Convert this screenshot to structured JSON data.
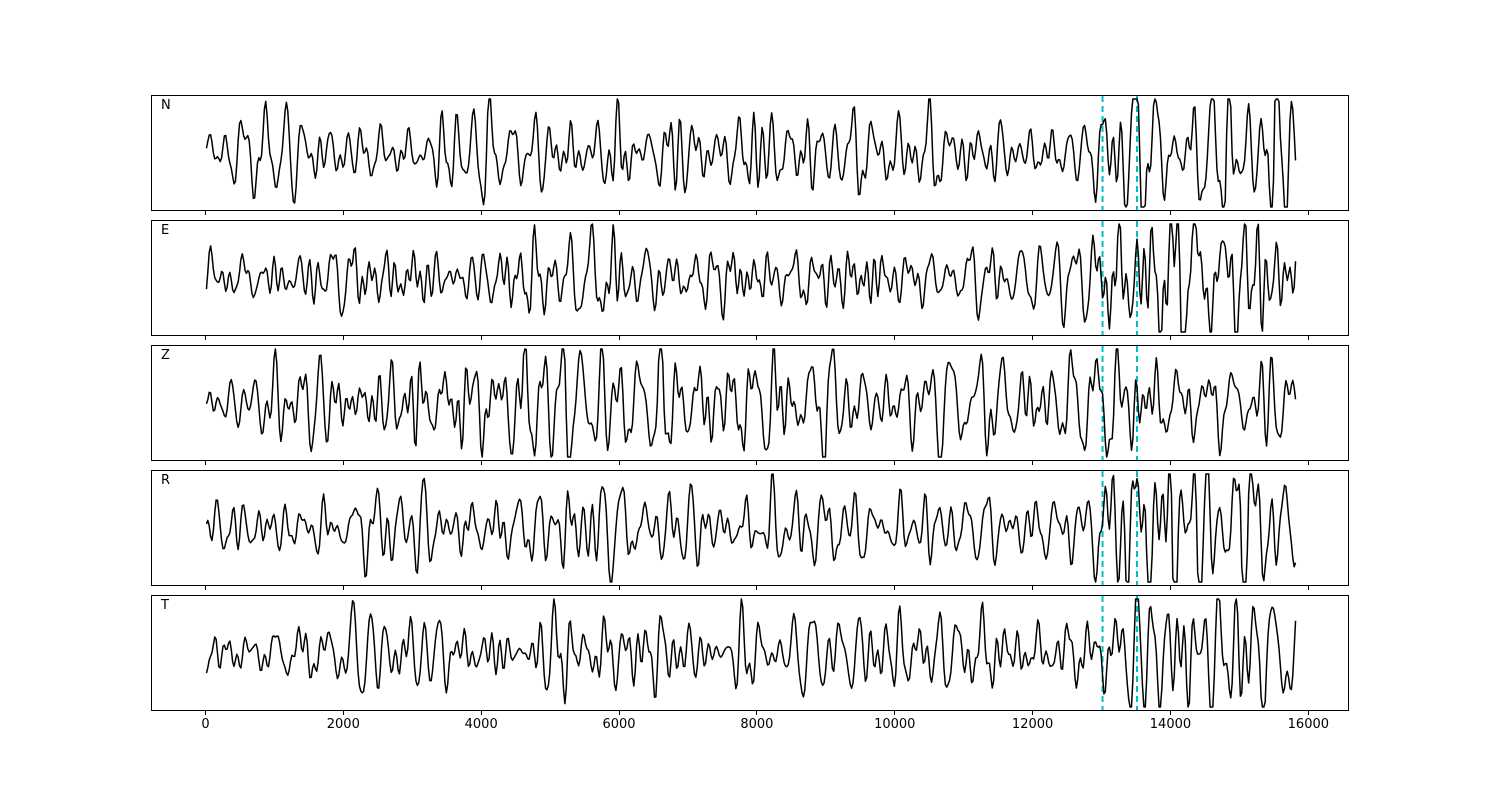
{
  "figure": {
    "background_color": "#ffffff",
    "frame_color": "#000000",
    "title": ""
  },
  "chart_data": {
    "type": "line",
    "kind": "multi-panel seismogram waveforms",
    "title": "",
    "xlabel": "",
    "ylabel": "",
    "grid": false,
    "legend": null,
    "trace_color": "#000000",
    "trace_linewidth": 1.5,
    "x_start": 0,
    "x_end": 15800,
    "xlim": [
      -790,
      16590
    ],
    "xticks": [
      0,
      2000,
      4000,
      6000,
      8000,
      10000,
      12000,
      14000,
      16000
    ],
    "xtick_labels": [
      "0",
      "2000",
      "4000",
      "6000",
      "8000",
      "10000",
      "12000",
      "14000",
      "16000"
    ],
    "vlines": {
      "positions": [
        13000,
        13500
      ],
      "color": "#00bfc8",
      "style": "dashed",
      "linewidth": 2,
      "note": "two dashed cyan vertical picks spanning every panel"
    },
    "panels": [
      {
        "label": "N",
        "seed": 11,
        "envelope": [
          [
            0,
            0.12
          ],
          [
            600,
            0.25
          ],
          [
            2500,
            0.28
          ],
          [
            5000,
            0.3
          ],
          [
            8000,
            0.28
          ],
          [
            10500,
            0.26
          ],
          [
            12800,
            0.24
          ],
          [
            13050,
            0.45
          ],
          [
            13500,
            0.55
          ],
          [
            14200,
            0.48
          ],
          [
            15000,
            0.55
          ],
          [
            15600,
            0.64
          ],
          [
            15800,
            0.5
          ]
        ]
      },
      {
        "label": "E",
        "seed": 22,
        "envelope": [
          [
            0,
            0.18
          ],
          [
            1500,
            0.2
          ],
          [
            3500,
            0.26
          ],
          [
            6000,
            0.3
          ],
          [
            7500,
            0.26
          ],
          [
            9500,
            0.22
          ],
          [
            12800,
            0.22
          ],
          [
            13100,
            0.42
          ],
          [
            13800,
            0.55
          ],
          [
            14300,
            0.62
          ],
          [
            15100,
            0.55
          ],
          [
            15800,
            0.4
          ]
        ]
      },
      {
        "label": "Z",
        "seed": 33,
        "envelope": [
          [
            0,
            0.2
          ],
          [
            400,
            0.42
          ],
          [
            1200,
            0.36
          ],
          [
            3000,
            0.32
          ],
          [
            4800,
            0.45
          ],
          [
            6300,
            0.42
          ],
          [
            7800,
            0.36
          ],
          [
            9500,
            0.32
          ],
          [
            11500,
            0.3
          ],
          [
            12800,
            0.3
          ],
          [
            13300,
            0.36
          ],
          [
            14500,
            0.4
          ],
          [
            15300,
            0.55
          ],
          [
            15800,
            0.45
          ]
        ]
      },
      {
        "label": "R",
        "seed": 44,
        "envelope": [
          [
            0,
            0.16
          ],
          [
            1000,
            0.24
          ],
          [
            3000,
            0.26
          ],
          [
            5000,
            0.3
          ],
          [
            7000,
            0.28
          ],
          [
            9000,
            0.26
          ],
          [
            11000,
            0.24
          ],
          [
            12700,
            0.22
          ],
          [
            13100,
            0.5
          ],
          [
            13700,
            0.62
          ],
          [
            14400,
            0.55
          ],
          [
            15100,
            0.6
          ],
          [
            15800,
            0.45
          ]
        ]
      },
      {
        "label": "T",
        "seed": 55,
        "envelope": [
          [
            0,
            0.16
          ],
          [
            2000,
            0.22
          ],
          [
            3200,
            0.3
          ],
          [
            5200,
            0.28
          ],
          [
            7000,
            0.3
          ],
          [
            9000,
            0.26
          ],
          [
            11000,
            0.24
          ],
          [
            12900,
            0.22
          ],
          [
            13300,
            0.45
          ],
          [
            14100,
            0.58
          ],
          [
            14900,
            0.62
          ],
          [
            15500,
            0.52
          ],
          [
            15800,
            0.55
          ]
        ]
      }
    ]
  }
}
